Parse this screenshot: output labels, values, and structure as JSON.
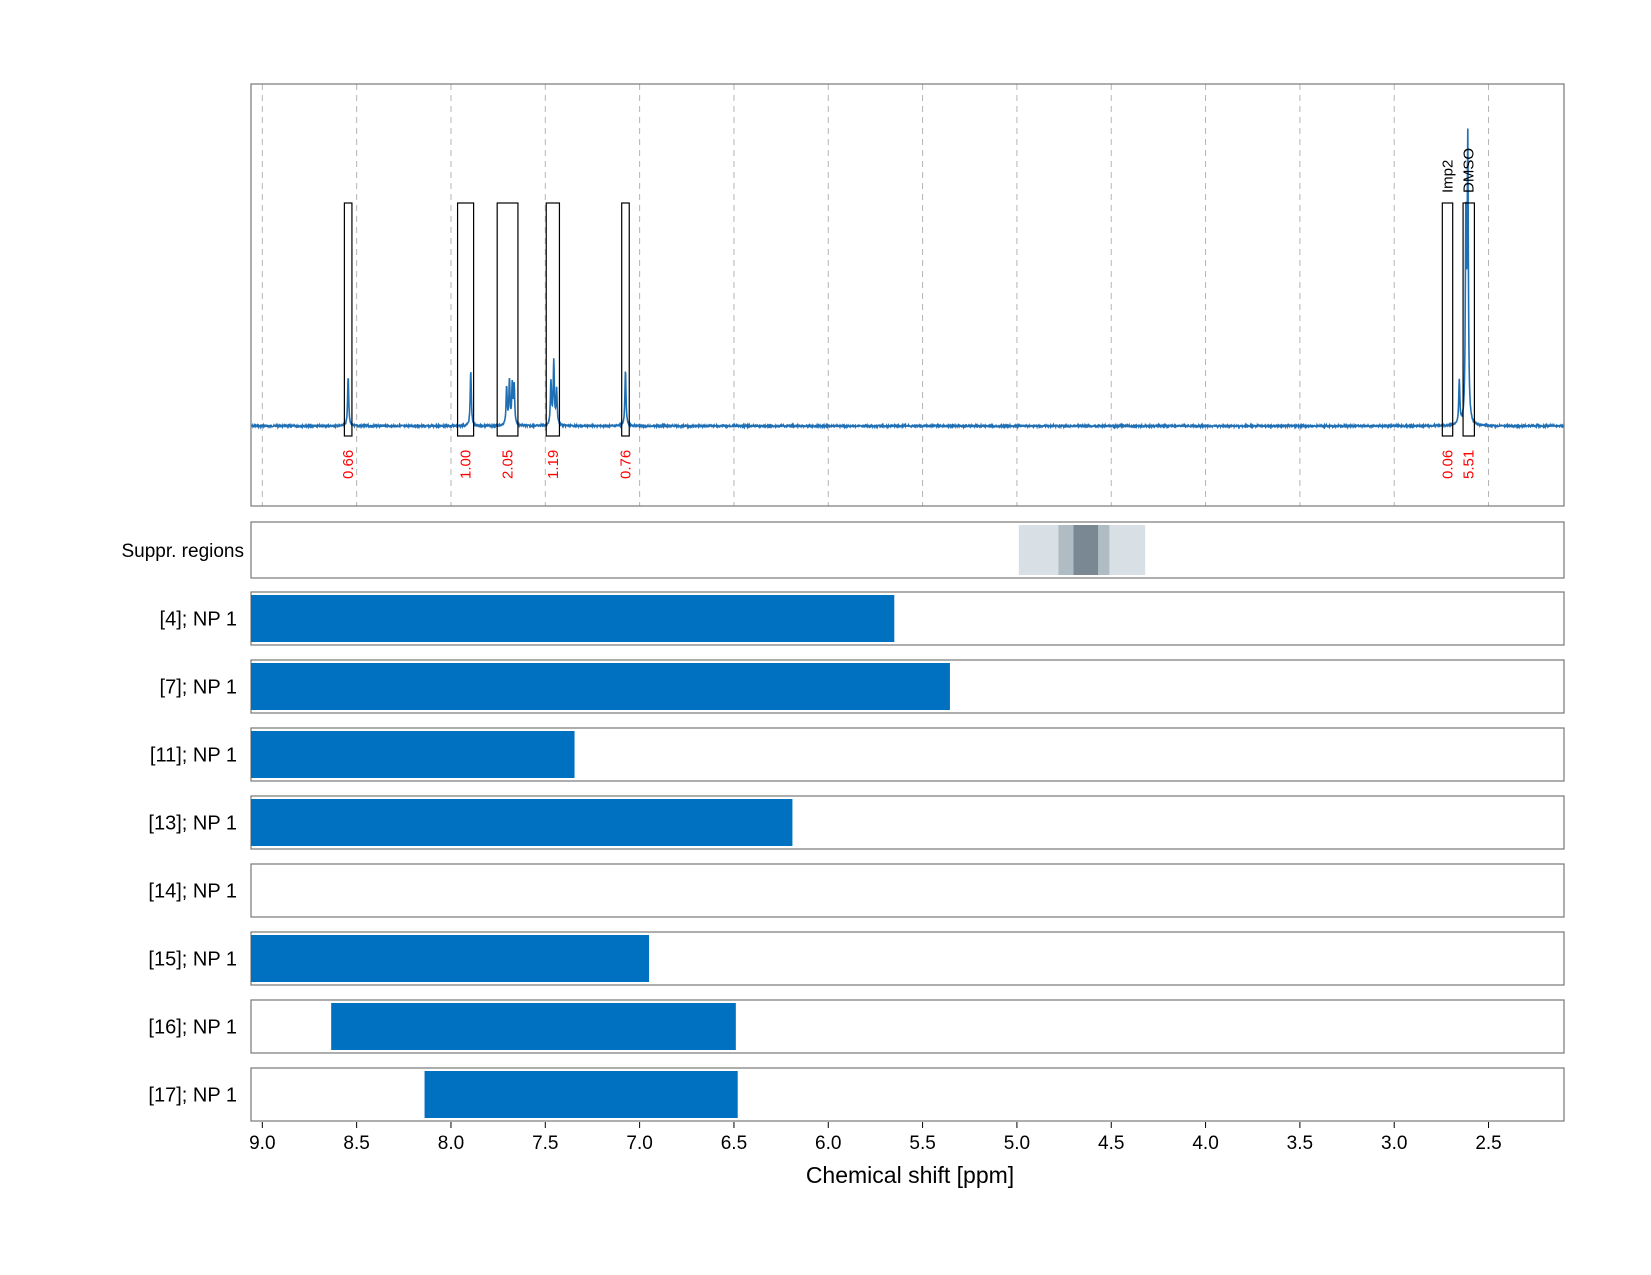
{
  "chart_data": {
    "type": "line",
    "xlabel": "Chemical shift [ppm]",
    "x_direction": "descending",
    "xlim": [
      9.06,
      2.1
    ],
    "x_ticks": [
      {
        "value": 9.0,
        "label": "9.0"
      },
      {
        "value": 8.5,
        "label": "8.5"
      },
      {
        "value": 8.0,
        "label": "8.0"
      },
      {
        "value": 7.5,
        "label": "7.5"
      },
      {
        "value": 7.0,
        "label": "7.0"
      },
      {
        "value": 6.5,
        "label": "6.5"
      },
      {
        "value": 6.0,
        "label": "6.0"
      },
      {
        "value": 5.5,
        "label": "5.5"
      },
      {
        "value": 5.0,
        "label": "5.0"
      },
      {
        "value": 4.5,
        "label": "4.5"
      },
      {
        "value": 4.0,
        "label": "4.0"
      },
      {
        "value": 3.5,
        "label": "3.5"
      },
      {
        "value": 3.0,
        "label": "3.0"
      },
      {
        "value": 2.5,
        "label": "2.5"
      }
    ],
    "grid": true,
    "spectrum": {
      "color": "#1f6fb5",
      "peaks": [
        {
          "ppm": 8.545,
          "height": 0.17
        },
        {
          "ppm": 7.895,
          "height": 0.19
        },
        {
          "ppm": 7.705,
          "height": 0.13
        },
        {
          "ppm": 7.69,
          "height": 0.15
        },
        {
          "ppm": 7.675,
          "height": 0.14
        },
        {
          "ppm": 7.665,
          "height": 0.13
        },
        {
          "ppm": 7.47,
          "height": 0.15
        },
        {
          "ppm": 7.455,
          "height": 0.22
        },
        {
          "ppm": 7.44,
          "height": 0.12
        },
        {
          "ppm": 7.075,
          "height": 0.19
        },
        {
          "ppm": 2.655,
          "height": 0.15
        },
        {
          "ppm": 2.62,
          "height": 0.69
        },
        {
          "ppm": 2.61,
          "height": 0.95
        }
      ]
    },
    "integration_regions": [
      {
        "start": 8.565,
        "end": 8.525,
        "integral": "0.66",
        "label": ""
      },
      {
        "start": 7.965,
        "end": 7.88,
        "integral": "1.00",
        "label": ""
      },
      {
        "start": 7.755,
        "end": 7.645,
        "integral": "2.05",
        "label": ""
      },
      {
        "start": 7.495,
        "end": 7.425,
        "integral": "1.19",
        "label": ""
      },
      {
        "start": 7.095,
        "end": 7.055,
        "integral": "0.76",
        "label": ""
      },
      {
        "start": 2.745,
        "end": 2.69,
        "integral": "0.06",
        "label": "Imp2"
      },
      {
        "start": 2.635,
        "end": 2.575,
        "integral": "5.51",
        "label": "DMSO"
      }
    ],
    "integral_color": "#ff0000",
    "suppressed_regions": {
      "label": "Suppr. regions",
      "bands": [
        {
          "start": 4.99,
          "end": 4.32,
          "color": "#d8e0e6"
        },
        {
          "start": 4.78,
          "end": 4.51,
          "color": "#b0bcc4"
        },
        {
          "start": 4.7,
          "end": 4.57,
          "color": "#7a8893"
        }
      ]
    },
    "tracks": [
      {
        "name": "[4]; NP 1",
        "start": 9.06,
        "end": 5.65
      },
      {
        "name": "[7]; NP 1",
        "start": 9.06,
        "end": 5.355
      },
      {
        "name": "[11]; NP 1",
        "start": 9.06,
        "end": 7.345
      },
      {
        "name": "[13]; NP 1",
        "start": 9.06,
        "end": 6.19
      },
      {
        "name": "[14]; NP 1"
      },
      {
        "name": "[15]; NP 1",
        "start": 9.06,
        "end": 6.95
      },
      {
        "name": "[16]; NP 1",
        "start": 8.635,
        "end": 6.49
      },
      {
        "name": "[17]; NP 1",
        "start": 8.14,
        "end": 6.48
      }
    ],
    "track_color": "#0070c0"
  }
}
